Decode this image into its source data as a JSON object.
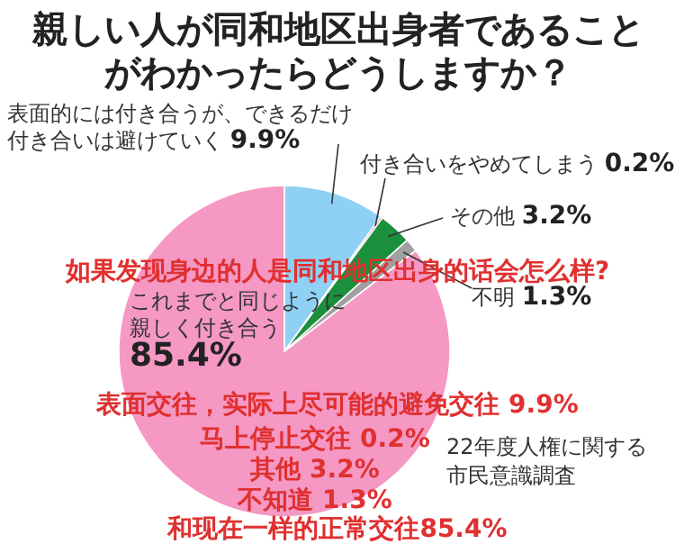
{
  "chart_data": {
    "type": "pie",
    "title": "親しい人が同和地区出身者であることがわかったらどうしますか？",
    "categories": [
      "表面的には付き合うが、できるだけ付き合いは避けていく",
      "付き合いをやめてしまう",
      "その他",
      "不明",
      "これまでと同じように親しく付き合う"
    ],
    "values": [
      9.9,
      0.2,
      3.2,
      1.3,
      85.4
    ],
    "value_labels": [
      "9.9%",
      "0.2%",
      "3.2%",
      "1.3%",
      "85.4%"
    ],
    "colors": [
      "#8fd0f5",
      "#d9302c",
      "#1a8f3c",
      "#a0a0a0",
      "#f598c4"
    ],
    "annotations": [
      "22年度人権に関する市民意識調査",
      "如果发现身边的人是同和地区出身的话会怎么样?",
      "表面交往，实际上尽可能的避免交往 9.9%",
      "马上停止交往 0.2%",
      "其他 3.2%",
      "不知道 1.3%",
      "和现在一样的正常交往85.4%"
    ]
  }
}
